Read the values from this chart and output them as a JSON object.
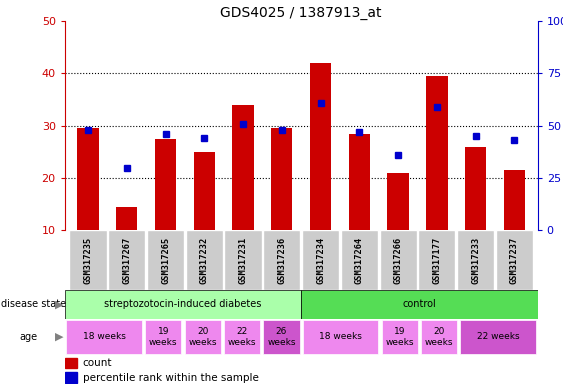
{
  "title": "GDS4025 / 1387913_at",
  "samples": [
    "GSM317235",
    "GSM317267",
    "GSM317265",
    "GSM317232",
    "GSM317231",
    "GSM317236",
    "GSM317234",
    "GSM317264",
    "GSM317266",
    "GSM317177",
    "GSM317233",
    "GSM317237"
  ],
  "counts": [
    29.5,
    14.5,
    27.5,
    25.0,
    34.0,
    29.5,
    42.0,
    28.5,
    21.0,
    39.5,
    26.0,
    21.5
  ],
  "percentile_pct": [
    48,
    30,
    46,
    44,
    51,
    48,
    61,
    47,
    36,
    59,
    45,
    43
  ],
  "ylim_left": [
    10,
    50
  ],
  "ylim_right": [
    0,
    100
  ],
  "bar_color": "#cc0000",
  "dot_color": "#0000cc",
  "disease_groups": [
    {
      "label": "streptozotocin-induced diabetes",
      "start": 0,
      "end": 6,
      "color": "#aaffaa"
    },
    {
      "label": "control",
      "start": 6,
      "end": 12,
      "color": "#55dd55"
    }
  ],
  "age_groups": [
    {
      "label": "18 weeks",
      "start": 0,
      "end": 2,
      "color": "#ee88ee"
    },
    {
      "label": "19\nweeks",
      "start": 2,
      "end": 3,
      "color": "#ee88ee"
    },
    {
      "label": "20\nweeks",
      "start": 3,
      "end": 4,
      "color": "#ee88ee"
    },
    {
      "label": "22\nweeks",
      "start": 4,
      "end": 5,
      "color": "#ee88ee"
    },
    {
      "label": "26\nweeks",
      "start": 5,
      "end": 6,
      "color": "#cc55cc"
    },
    {
      "label": "18 weeks",
      "start": 6,
      "end": 8,
      "color": "#ee88ee"
    },
    {
      "label": "19\nweeks",
      "start": 8,
      "end": 9,
      "color": "#ee88ee"
    },
    {
      "label": "20\nweeks",
      "start": 9,
      "end": 10,
      "color": "#ee88ee"
    },
    {
      "label": "22 weeks",
      "start": 10,
      "end": 12,
      "color": "#cc55cc"
    }
  ],
  "tick_labels_left": [
    10,
    20,
    30,
    40,
    50
  ],
  "tick_labels_right": [
    0,
    25,
    50,
    75,
    100
  ],
  "sample_bg_color": "#cccccc",
  "left_label_color": "#cc0000",
  "right_label_color": "#0000cc"
}
